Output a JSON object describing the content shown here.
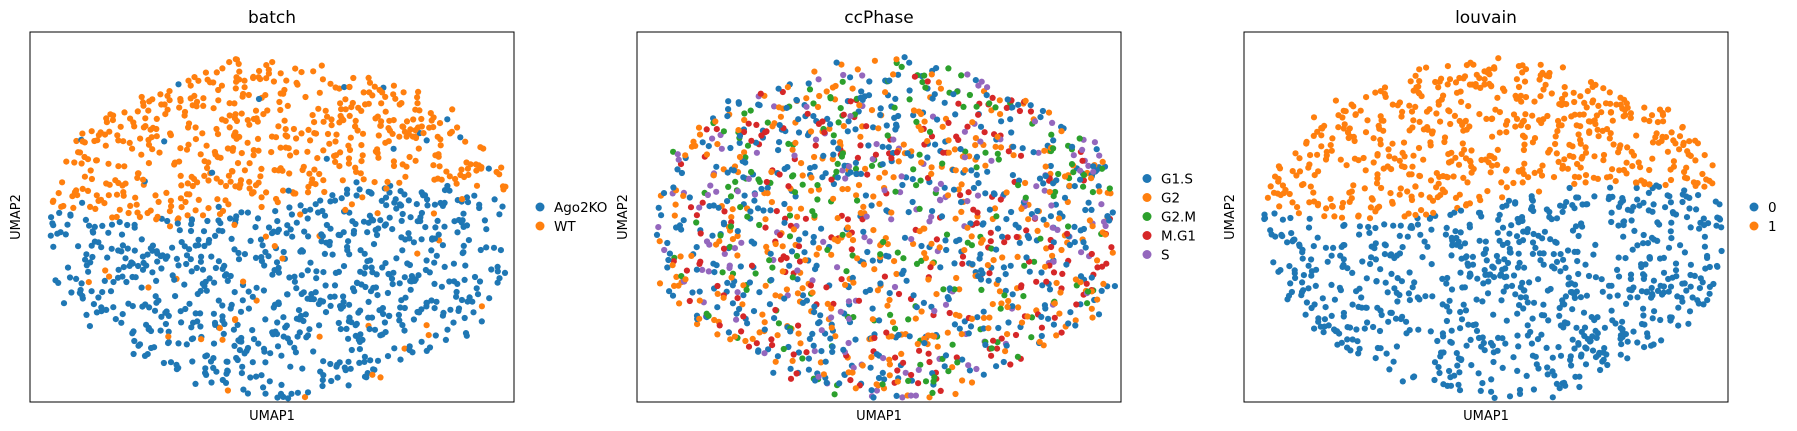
{
  "figure": {
    "panels": [
      {
        "title": "batch",
        "xlabel": "UMAP1",
        "ylabel": "UMAP2"
      },
      {
        "title": "ccPhase",
        "xlabel": "UMAP1",
        "ylabel": "UMAP2"
      },
      {
        "title": "louvain",
        "xlabel": "UMAP1",
        "ylabel": "UMAP2"
      }
    ]
  },
  "chart_data": [
    {
      "type": "scatter",
      "title": "batch",
      "xlabel": "UMAP1",
      "ylabel": "UMAP2",
      "grid": false,
      "ticks": false,
      "legend_position": "right-outside",
      "approx_points": 1300,
      "series": [
        {
          "name": "Ago2KO",
          "color": "#1f77b4",
          "region": "lower half of the point cloud"
        },
        {
          "name": "WT",
          "color": "#ff7f0e",
          "region": "upper half of the point cloud"
        }
      ]
    },
    {
      "type": "scatter",
      "title": "ccPhase",
      "xlabel": "UMAP1",
      "ylabel": "UMAP2",
      "grid": false,
      "ticks": false,
      "legend_position": "right-outside",
      "approx_points": 1500,
      "series": [
        {
          "name": "G1.S",
          "color": "#1f77b4",
          "region": "scattered throughout"
        },
        {
          "name": "G2",
          "color": "#ff7f0e",
          "region": "scattered throughout"
        },
        {
          "name": "G2.M",
          "color": "#2ca02c",
          "region": "scattered throughout"
        },
        {
          "name": "M.G1",
          "color": "#d62728",
          "region": "concentrated lower-right"
        },
        {
          "name": "S",
          "color": "#9467bd",
          "region": "concentrated upper-left"
        }
      ]
    },
    {
      "type": "scatter",
      "title": "louvain",
      "xlabel": "UMAP1",
      "ylabel": "UMAP2",
      "grid": false,
      "ticks": false,
      "legend_position": "right-outside",
      "approx_points": 1300,
      "series": [
        {
          "name": "0",
          "color": "#1f77b4",
          "region": "lower half of the point cloud"
        },
        {
          "name": "1",
          "color": "#ff7f0e",
          "region": "upper half of the point cloud"
        }
      ]
    }
  ]
}
